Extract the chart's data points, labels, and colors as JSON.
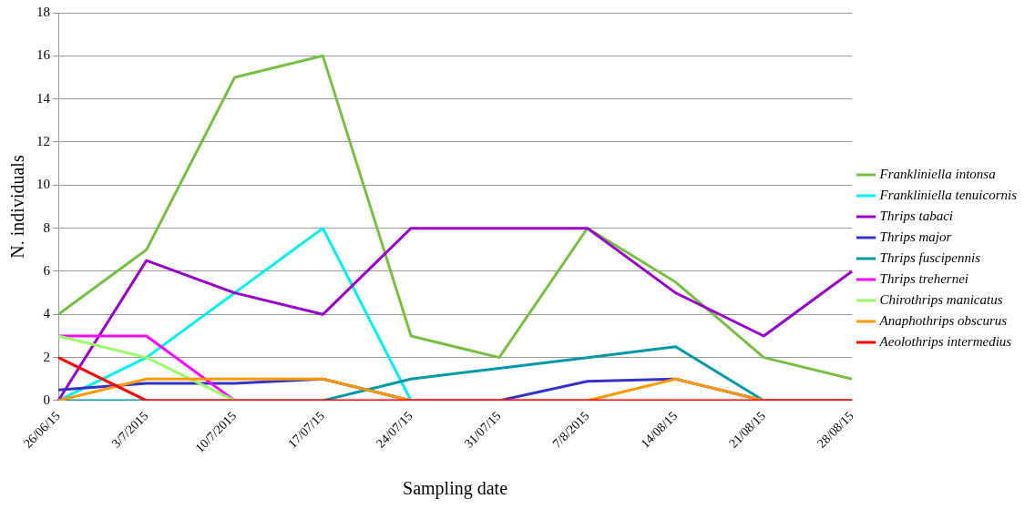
{
  "chart_data": {
    "type": "line",
    "xlabel": "Sampling date",
    "ylabel": "N. individuals",
    "categories": [
      "26/06/15",
      "3/7/2015",
      "10/7/2015",
      "17/07/15",
      "24/07/15",
      "31/07/15",
      "7/8/2015",
      "14/08/15",
      "21/08/15",
      "28/08/15"
    ],
    "series": [
      {
        "name": "Frankliniella intonsa",
        "color": "#77c043",
        "values": [
          4,
          7,
          15,
          16,
          3,
          2,
          8,
          5.5,
          2,
          1
        ]
      },
      {
        "name": "Frankliniella tenuicornis",
        "color": "#00f0f0",
        "values": [
          0,
          2,
          5,
          8,
          0,
          null,
          null,
          null,
          null,
          null
        ]
      },
      {
        "name": "Thrips tabaci",
        "color": "#9900cc",
        "values": [
          0,
          6.5,
          5,
          4,
          8,
          8,
          8,
          5,
          3,
          6
        ]
      },
      {
        "name": "Thrips major",
        "color": "#3333cc",
        "values": [
          0.5,
          0.8,
          0.8,
          1,
          0,
          0,
          0.9,
          1,
          0,
          0
        ]
      },
      {
        "name": "Thrips fuscipennis",
        "color": "#0099aa",
        "values": [
          0,
          0,
          0,
          0,
          1,
          1.5,
          2,
          2.5,
          0,
          0
        ]
      },
      {
        "name": "Thrips trehernei",
        "color": "#ff00ff",
        "values": [
          3,
          3,
          0,
          null,
          null,
          null,
          null,
          null,
          null,
          null
        ]
      },
      {
        "name": "Chirothrips manicatus",
        "color": "#99ff66",
        "values": [
          3,
          2,
          0,
          null,
          null,
          null,
          null,
          null,
          null,
          null
        ]
      },
      {
        "name": "Anaphothrips obscurus",
        "color": "#ff9900",
        "values": [
          0,
          1,
          1,
          1,
          0,
          0,
          0,
          1,
          0,
          0
        ]
      },
      {
        "name": "Aeolothrips intermedius",
        "color": "#ff0000",
        "values": [
          2,
          0,
          0,
          0,
          0,
          0,
          0,
          0,
          0,
          0
        ]
      }
    ],
    "ylim": [
      0,
      18
    ],
    "yticks": [
      0,
      2,
      4,
      6,
      8,
      10,
      12,
      14,
      16,
      18
    ],
    "grid": "y",
    "legend": "right",
    "marker": "none",
    "line_style": "solid"
  }
}
